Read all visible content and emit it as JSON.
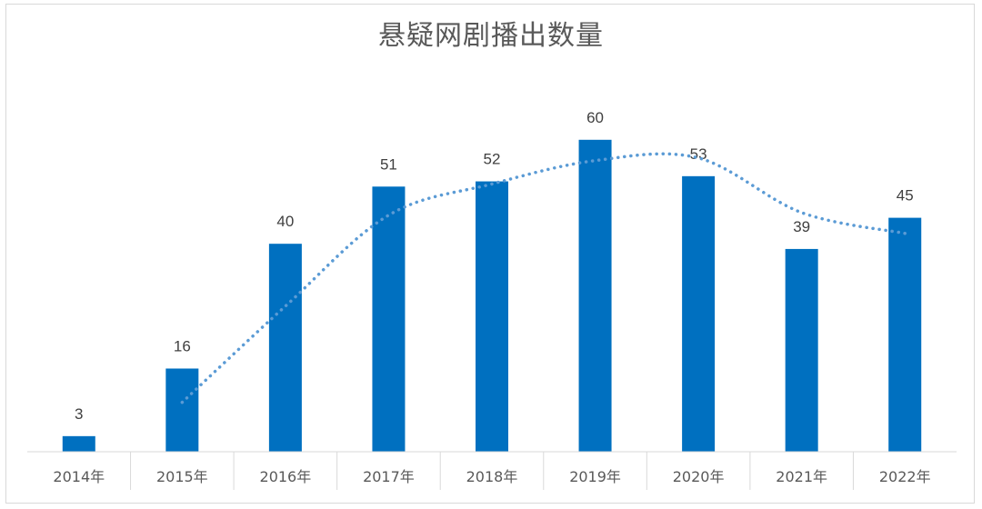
{
  "chart_data": {
    "type": "bar",
    "title": "悬疑网剧播出数量",
    "categories": [
      "2014年",
      "2015年",
      "2016年",
      "2017年",
      "2018年",
      "2019年",
      "2020年",
      "2021年",
      "2022年"
    ],
    "values": [
      3,
      16,
      40,
      51,
      52,
      60,
      53,
      39,
      45
    ],
    "ylim": [
      0,
      90
    ],
    "bar_color": "#0070c0",
    "trendline": {
      "style": "dotted",
      "type": "moving-average",
      "color": "#5b9bd5"
    },
    "data_labels": true,
    "grid": false,
    "legend": "none"
  }
}
